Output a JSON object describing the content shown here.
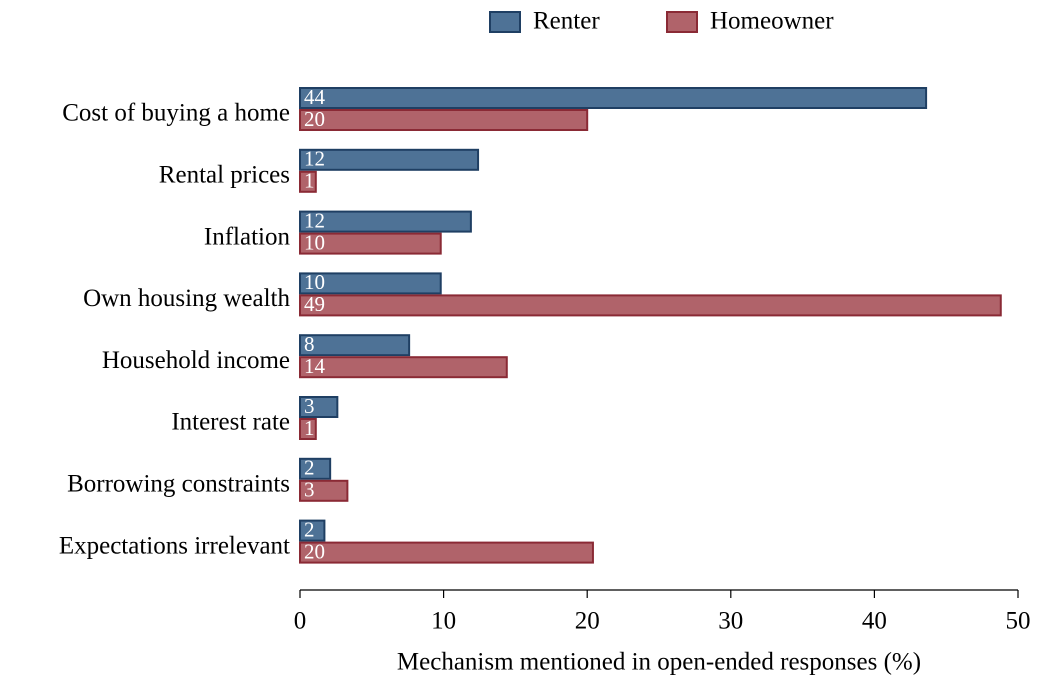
{
  "chart_data": {
    "type": "barh",
    "xlabel": "Mechanism mentioned in open-ended responses (%)",
    "categories": [
      "Cost of buying a home",
      "Rental prices",
      "Inflation",
      "Own housing wealth",
      "Household income",
      "Interest rate",
      "Borrowing constraints",
      "Expectations irrelevant"
    ],
    "series": [
      {
        "name": "Renter",
        "color": "#4e7296",
        "edgecolor": "#1f3f63",
        "values": [
          43.6,
          12.4,
          11.9,
          9.8,
          7.6,
          2.6,
          2.1,
          1.7
        ],
        "value_labels": [
          "44",
          "12",
          "12",
          "10",
          "8",
          "3",
          "2",
          "2"
        ]
      },
      {
        "name": "Homeowner",
        "color": "#b0636a",
        "edgecolor": "#8a2a35",
        "values": [
          20.0,
          1.1,
          9.8,
          48.8,
          14.4,
          1.1,
          3.3,
          20.4
        ],
        "value_labels": [
          "20",
          "1",
          "10",
          "49",
          "14",
          "1",
          "3",
          "20"
        ]
      }
    ],
    "xlim": [
      0,
      50
    ],
    "xticks": [
      0,
      10,
      20,
      30,
      40,
      50
    ],
    "legend": "top"
  }
}
